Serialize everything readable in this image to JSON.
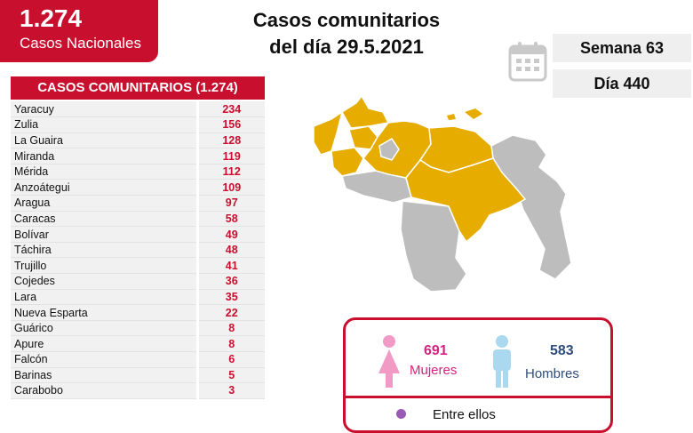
{
  "national": {
    "count": "1.274",
    "label": "Casos Nacionales"
  },
  "title": {
    "line1": "Casos comunitarios",
    "line2": "del día 29.5.2021"
  },
  "week": "Semana 63",
  "day": "Día 440",
  "table": {
    "header": "CASOS COMUNITARIOS (1.274)",
    "rows": [
      {
        "state": "Yaracuy",
        "cases": "234"
      },
      {
        "state": "Zulia",
        "cases": "156"
      },
      {
        "state": "La Guaira",
        "cases": "128"
      },
      {
        "state": "Miranda",
        "cases": "119"
      },
      {
        "state": "Mérida",
        "cases": "112"
      },
      {
        "state": "Anzoátegui",
        "cases": "109"
      },
      {
        "state": "Aragua",
        "cases": "97"
      },
      {
        "state": "Caracas",
        "cases": "58"
      },
      {
        "state": "Bolívar",
        "cases": "49"
      },
      {
        "state": "Táchira",
        "cases": "48"
      },
      {
        "state": "Trujillo",
        "cases": "41"
      },
      {
        "state": "Cojedes",
        "cases": "36"
      },
      {
        "state": "Lara",
        "cases": "35"
      },
      {
        "state": "Nueva Esparta",
        "cases": "22"
      },
      {
        "state": "Guárico",
        "cases": "8"
      },
      {
        "state": "Apure",
        "cases": "8"
      },
      {
        "state": "Falcón",
        "cases": "6"
      },
      {
        "state": "Barinas",
        "cases": "5"
      },
      {
        "state": "Carabobo",
        "cases": "3"
      }
    ]
  },
  "gender": {
    "women_count": "691",
    "women_label": "Mujeres",
    "men_count": "583",
    "men_label": "Hombres",
    "among": "Entre ellos"
  },
  "colors": {
    "accent": "#c8102e",
    "map_affected": "#e6ac00",
    "map_other": "#bdbdbd",
    "women": "#d4237f",
    "men": "#2e4d7b"
  },
  "icons": [
    "calendar-icon",
    "female-icon",
    "male-icon",
    "venezuela-map"
  ]
}
